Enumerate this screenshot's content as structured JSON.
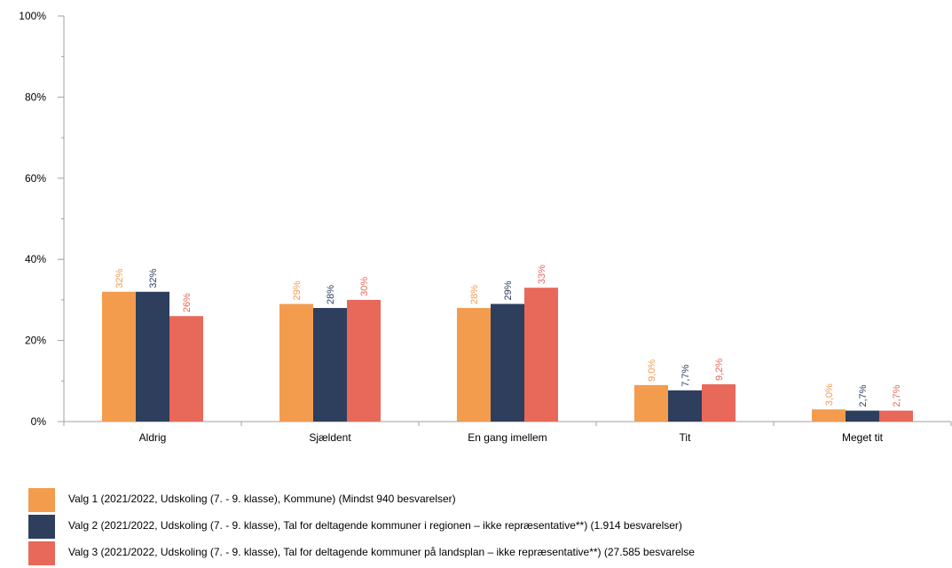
{
  "chart_data": {
    "type": "bar",
    "categories": [
      "Aldrig",
      "Sjældent",
      "En gang imellem",
      "Tit",
      "Meget tit"
    ],
    "ylim": [
      0,
      100
    ],
    "yticks": [
      "0%",
      "20%",
      "40%",
      "60%",
      "80%",
      "100%"
    ],
    "series": [
      {
        "name": "Valg 1 (2021/2022, Udskoling (7. - 9. klasse), Kommune) (Mindst 940 besvarelser)",
        "color": "#F39C4E",
        "values": [
          32,
          29,
          28,
          9.0,
          3.0
        ],
        "labels": [
          "32%",
          "29%",
          "28%",
          "9,0%",
          "3,0%"
        ]
      },
      {
        "name": "Valg 2 (2021/2022, Udskoling (7. - 9. klasse), Tal for deltagende kommuner i regionen – ikke repræsentative**) (1.914 besvarelser)",
        "color": "#2E3F5E",
        "values": [
          32,
          28,
          29,
          7.7,
          2.7
        ],
        "labels": [
          "32%",
          "28%",
          "29%",
          "7,7%",
          "2,7%"
        ]
      },
      {
        "name": "Valg 3 (2021/2022, Udskoling (7. - 9. klasse), Tal for deltagende kommuner på landsplan – ikke repræsentative**) (27.585 besvarelse",
        "color": "#E8685A",
        "values": [
          26,
          30,
          33,
          9.2,
          2.7
        ],
        "labels": [
          "26%",
          "30%",
          "33%",
          "9,2%",
          "2,7%"
        ]
      }
    ],
    "grid": false,
    "legend_position": "bottom"
  }
}
